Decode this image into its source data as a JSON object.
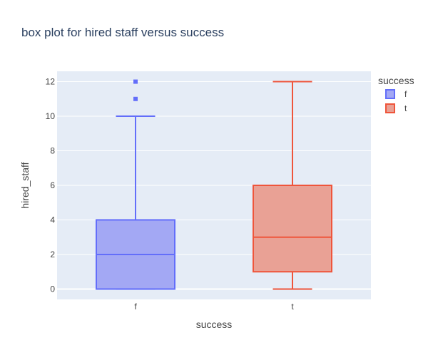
{
  "chart_data": {
    "type": "box",
    "title": "box plot for hired staff versus success",
    "xlabel": "success",
    "ylabel": "hired_staff",
    "categories": [
      "f",
      "t"
    ],
    "ylim": [
      -0.6,
      12.6
    ],
    "yticks": [
      0,
      2,
      4,
      6,
      8,
      10,
      12
    ],
    "grid": true,
    "legend": {
      "title": "success",
      "position": "top-right"
    },
    "series": [
      {
        "name": "f",
        "category": "f",
        "color": "#636efa",
        "fill": "#a3a8f4",
        "min": 0,
        "q1": 0,
        "median": 2,
        "q3": 4,
        "max": 10,
        "outliers": [
          11,
          12
        ]
      },
      {
        "name": "t",
        "category": "t",
        "color": "#ef553b",
        "fill": "#e9a195",
        "min": 0,
        "q1": 1,
        "median": 3,
        "q3": 6,
        "max": 12,
        "outliers": []
      }
    ],
    "colors": {
      "plot_bg": "#e5ecf6",
      "grid": "#ffffff",
      "text": "#444444",
      "title": "#2a3f5f"
    }
  }
}
